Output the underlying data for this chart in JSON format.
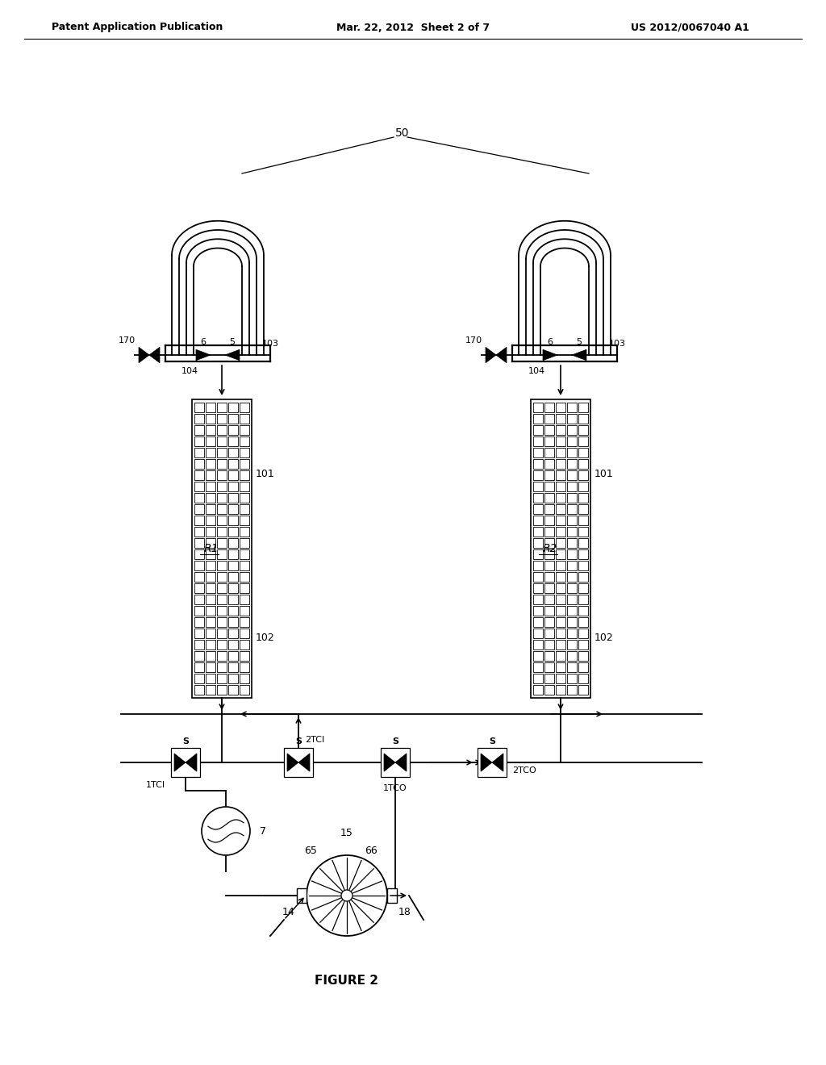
{
  "header_left": "Patent Application Publication",
  "header_mid": "Mar. 22, 2012  Sheet 2 of 7",
  "header_right": "US 2012/0067040 A1",
  "figure_label": "FIGURE 2",
  "bg_color": "#ffffff",
  "line_color": "#000000",
  "lw": 1.3
}
